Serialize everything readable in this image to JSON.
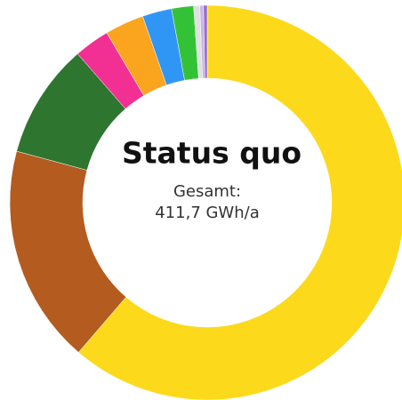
{
  "chart_data": {
    "type": "donut",
    "title": "Status quo",
    "annotations": [
      "Gesamt:",
      "411,7 GWh/a"
    ],
    "values": [
      61.3,
      17.9,
      9.4,
      2.9,
      3.2,
      2.4,
      1.8,
      0.5,
      0.3,
      0.3
    ],
    "colors": [
      "#fdd91c",
      "#b45b1f",
      "#2e7530",
      "#f22f93",
      "#fba51f",
      "#3096f6",
      "#33c236",
      "#e0e0e0",
      "#c9b6e6",
      "#9a6cc9"
    ]
  }
}
